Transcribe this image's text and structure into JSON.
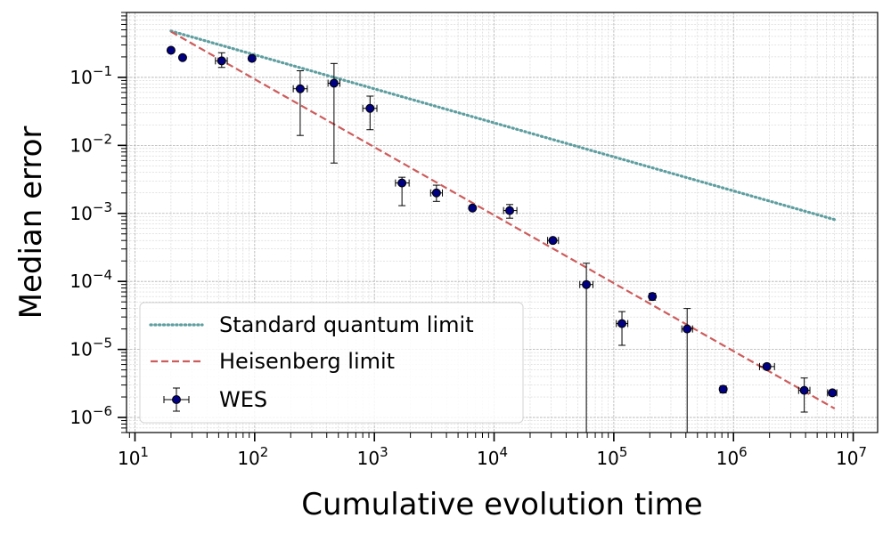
{
  "chart_data": {
    "type": "scatter",
    "xlabel": "Cumulative evolution time",
    "ylabel": "Median error",
    "xscale": "log",
    "yscale": "log",
    "xlim": [
      8.5,
      16000000
    ],
    "ylim": [
      6e-07,
      0.9
    ],
    "grid": true,
    "legend_position": "lower-left",
    "x_tick_labels": [
      {
        "base": "10",
        "exp": "1",
        "value": 10
      },
      {
        "base": "10",
        "exp": "2",
        "value": 100
      },
      {
        "base": "10",
        "exp": "3",
        "value": 1000
      },
      {
        "base": "10",
        "exp": "4",
        "value": 10000
      },
      {
        "base": "10",
        "exp": "5",
        "value": 100000
      },
      {
        "base": "10",
        "exp": "6",
        "value": 1000000
      },
      {
        "base": "10",
        "exp": "7",
        "value": 10000000
      }
    ],
    "y_tick_labels": [
      {
        "base": "10",
        "exp": "−1",
        "value": 0.1
      },
      {
        "base": "10",
        "exp": "−2",
        "value": 0.01
      },
      {
        "base": "10",
        "exp": "−3",
        "value": 0.001
      },
      {
        "base": "10",
        "exp": "−4",
        "value": 0.0001
      },
      {
        "base": "10",
        "exp": "−5",
        "value": 1e-05
      },
      {
        "base": "10",
        "exp": "−6",
        "value": 1e-06
      }
    ],
    "series": [
      {
        "name": "Standard quantum limit",
        "kind": "line",
        "style": "dotted",
        "color": "#5f9ea0",
        "x": [
          20,
          7000000
        ],
        "y": [
          0.48,
          0.00081
        ]
      },
      {
        "name": "Heisenberg limit",
        "kind": "line",
        "style": "dashed",
        "color": "#cd5c5c",
        "x": [
          20,
          7000000
        ],
        "y": [
          0.47,
          1.35e-06
        ]
      },
      {
        "name": "WES",
        "kind": "errorbar",
        "color": "#000080",
        "points": [
          {
            "x": 20,
            "y": 0.25,
            "ylo": 0.25,
            "yhi": 0.25
          },
          {
            "x": 25,
            "y": 0.195,
            "ylo": 0.195,
            "yhi": 0.195
          },
          {
            "x": 53,
            "y": 0.175,
            "ylo": 0.14,
            "yhi": 0.23,
            "xlo": 47,
            "xhi": 59
          },
          {
            "x": 95,
            "y": 0.19,
            "ylo": 0.175,
            "yhi": 0.205
          },
          {
            "x": 240,
            "y": 0.068,
            "ylo": 0.014,
            "yhi": 0.125,
            "xlo": 210,
            "xhi": 275
          },
          {
            "x": 460,
            "y": 0.082,
            "ylo": 0.0055,
            "yhi": 0.16,
            "xlo": 410,
            "xhi": 515
          },
          {
            "x": 920,
            "y": 0.035,
            "ylo": 0.017,
            "yhi": 0.053,
            "xlo": 800,
            "xhi": 1050
          },
          {
            "x": 1700,
            "y": 0.0028,
            "ylo": 0.0013,
            "yhi": 0.0034,
            "xlo": 1500,
            "xhi": 1950
          },
          {
            "x": 3300,
            "y": 0.002,
            "ylo": 0.0015,
            "yhi": 0.0026,
            "xlo": 2950,
            "xhi": 3700
          },
          {
            "x": 6600,
            "y": 0.0012,
            "ylo": 0.00115,
            "yhi": 0.00125
          },
          {
            "x": 13500,
            "y": 0.0011,
            "ylo": 0.00085,
            "yhi": 0.00135,
            "xlo": 12000,
            "xhi": 15500
          },
          {
            "x": 31000,
            "y": 0.0004,
            "ylo": 0.00037,
            "yhi": 0.00043,
            "xlo": 28000,
            "xhi": 34500
          },
          {
            "x": 59000,
            "y": 9e-05,
            "ylo": 1e-07,
            "yhi": 0.000185,
            "xlo": 52000,
            "xhi": 67000
          },
          {
            "x": 117000,
            "y": 2.4e-05,
            "ylo": 1.15e-05,
            "yhi": 3.6e-05,
            "xlo": 105000,
            "xhi": 131000
          },
          {
            "x": 210000,
            "y": 6e-05,
            "ylo": 5.3e-05,
            "yhi": 6.7e-05
          },
          {
            "x": 410000,
            "y": 2e-05,
            "ylo": 1e-07,
            "yhi": 4e-05,
            "xlo": 370000,
            "xhi": 455000
          },
          {
            "x": 820000,
            "y": 2.6e-06,
            "ylo": 2.3e-06,
            "yhi": 2.9e-06
          },
          {
            "x": 1900000,
            "y": 5.6e-06,
            "ylo": 5.1e-06,
            "yhi": 6.1e-06,
            "xlo": 1650000,
            "xhi": 2200000
          },
          {
            "x": 3900000,
            "y": 2.5e-06,
            "ylo": 1.2e-06,
            "yhi": 3.8e-06,
            "xlo": 3500000,
            "xhi": 4350000
          },
          {
            "x": 6700000,
            "y": 2.3e-06,
            "ylo": 2.1e-06,
            "yhi": 2.5e-06,
            "xlo": 6100000,
            "xhi": 7300000
          }
        ]
      }
    ]
  }
}
